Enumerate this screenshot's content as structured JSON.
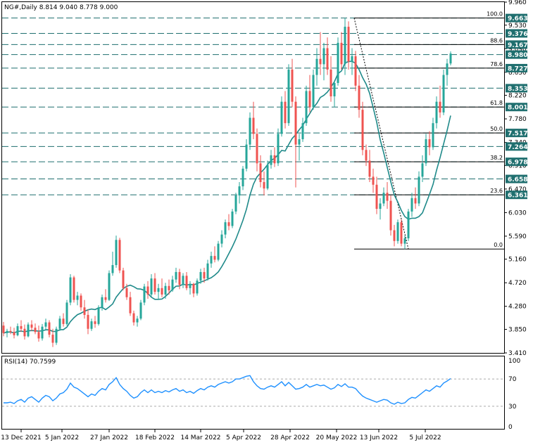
{
  "header": {
    "symbol_line": "NG#,Daily  8.814 9.040 8.778 9.000",
    "rsi_label": "RSI(14) 70.7599"
  },
  "colors": {
    "bull": "#26a69a",
    "bear": "#ef5350",
    "ma": "#1f8a8a",
    "rsi": "#1e90ff",
    "level_line": "#1f6f6f",
    "tag_bg": "#1f6f6f"
  },
  "chart_data": {
    "type": "candlestick",
    "title": "NG#,Daily",
    "ohlc_last": {
      "open": 8.814,
      "high": 9.04,
      "low": 8.778,
      "close": 9.0
    },
    "x_tick_labels": [
      "13 Dec 2021",
      "5 Jan 2022",
      "27 Jan 2022",
      "18 Feb 2022",
      "14 Mar 2022",
      "5 Apr 2022",
      "28 Apr 2022",
      "20 May 2022",
      "13 Jun 2022",
      "5 Jul 2022"
    ],
    "y_tick_labels": [
      "9.960",
      "9.530",
      "9.090",
      "8.650",
      "8.220",
      "7.780",
      "7.340",
      "6.910",
      "6.470",
      "6.030",
      "5.590",
      "5.160",
      "4.720",
      "4.280",
      "3.850",
      "3.410"
    ],
    "ylim": [
      3.41,
      9.96
    ],
    "horizontal_levels": [
      9.663,
      9.376,
      9.167,
      8.98,
      8.727,
      8.353,
      8.001,
      7.517,
      7.264,
      6.978,
      6.658,
      6.361
    ],
    "fibonacci": {
      "levels": [
        {
          "label": "100.0",
          "value": 9.663
        },
        {
          "label": "88.6",
          "value": 9.167
        },
        {
          "label": "78.6",
          "value": 8.727
        },
        {
          "label": "61.8",
          "value": 8.001
        },
        {
          "label": "50.0",
          "value": 7.517
        },
        {
          "label": "38.2",
          "value": 6.978
        },
        {
          "label": "23.6",
          "value": 6.361
        },
        {
          "label": "0.0",
          "value": 5.35
        }
      ]
    },
    "candles": [
      [
        3.92,
        3.99,
        3.72,
        3.78
      ],
      [
        3.78,
        3.86,
        3.7,
        3.82
      ],
      [
        3.82,
        3.9,
        3.76,
        3.8
      ],
      [
        3.8,
        3.88,
        3.68,
        3.74
      ],
      [
        3.74,
        3.96,
        3.72,
        3.91
      ],
      [
        3.91,
        4.02,
        3.8,
        3.86
      ],
      [
        3.86,
        3.94,
        3.66,
        3.72
      ],
      [
        3.72,
        3.98,
        3.7,
        3.94
      ],
      [
        3.94,
        4.02,
        3.82,
        3.88
      ],
      [
        3.88,
        3.96,
        3.76,
        3.8
      ],
      [
        3.8,
        3.92,
        3.62,
        3.68
      ],
      [
        3.68,
        3.95,
        3.64,
        3.9
      ],
      [
        3.9,
        4.05,
        3.85,
        3.98
      ],
      [
        3.98,
        4.02,
        3.7,
        3.75
      ],
      [
        3.75,
        3.86,
        3.52,
        3.6
      ],
      [
        3.6,
        3.9,
        3.56,
        3.86
      ],
      [
        3.86,
        4.1,
        3.82,
        4.05
      ],
      [
        4.05,
        4.15,
        3.9,
        3.95
      ],
      [
        3.95,
        4.4,
        3.92,
        4.35
      ],
      [
        4.35,
        4.88,
        4.3,
        4.82
      ],
      [
        4.82,
        4.85,
        4.35,
        4.4
      ],
      [
        4.4,
        4.55,
        4.3,
        4.48
      ],
      [
        4.48,
        4.52,
        4.2,
        4.26
      ],
      [
        4.26,
        4.4,
        4.05,
        4.12
      ],
      [
        4.12,
        4.22,
        3.76,
        3.86
      ],
      [
        3.86,
        4.05,
        3.82,
        4.0
      ],
      [
        4.0,
        4.1,
        3.88,
        3.95
      ],
      [
        3.95,
        4.3,
        3.92,
        4.26
      ],
      [
        4.26,
        4.5,
        4.2,
        4.45
      ],
      [
        4.45,
        4.6,
        4.35,
        4.4
      ],
      [
        4.4,
        4.95,
        4.38,
        4.9
      ],
      [
        4.9,
        5.3,
        4.85,
        5.05
      ],
      [
        5.05,
        5.6,
        5.0,
        5.52
      ],
      [
        5.52,
        5.56,
        4.9,
        4.95
      ],
      [
        4.95,
        5.0,
        4.58,
        4.62
      ],
      [
        4.62,
        4.7,
        4.4,
        4.45
      ],
      [
        4.45,
        4.55,
        4.1,
        4.15
      ],
      [
        4.15,
        4.2,
        3.92,
        3.98
      ],
      [
        3.98,
        4.1,
        3.9,
        4.05
      ],
      [
        4.05,
        4.4,
        4.02,
        4.35
      ],
      [
        4.35,
        4.7,
        4.3,
        4.65
      ],
      [
        4.65,
        4.75,
        4.42,
        4.5
      ],
      [
        4.5,
        4.88,
        4.45,
        4.8
      ],
      [
        4.8,
        4.9,
        4.5,
        4.55
      ],
      [
        4.55,
        4.7,
        4.4,
        4.62
      ],
      [
        4.62,
        4.8,
        4.45,
        4.5
      ],
      [
        4.5,
        4.72,
        4.42,
        4.66
      ],
      [
        4.66,
        4.78,
        4.5,
        4.58
      ],
      [
        4.58,
        4.85,
        4.55,
        4.78
      ],
      [
        4.78,
        5.0,
        4.72,
        4.92
      ],
      [
        4.92,
        4.98,
        4.6,
        4.68
      ],
      [
        4.68,
        4.9,
        4.62,
        4.85
      ],
      [
        4.85,
        4.92,
        4.58,
        4.62
      ],
      [
        4.62,
        4.75,
        4.5,
        4.7
      ],
      [
        4.7,
        4.72,
        4.45,
        4.52
      ],
      [
        4.52,
        4.8,
        4.48,
        4.76
      ],
      [
        4.76,
        4.98,
        4.7,
        4.92
      ],
      [
        4.92,
        5.0,
        4.72,
        4.8
      ],
      [
        4.8,
        5.15,
        4.76,
        5.08
      ],
      [
        5.08,
        5.3,
        5.0,
        5.22
      ],
      [
        5.22,
        5.4,
        5.1,
        5.15
      ],
      [
        5.15,
        5.5,
        5.12,
        5.45
      ],
      [
        5.45,
        5.7,
        5.38,
        5.62
      ],
      [
        5.62,
        5.9,
        5.55,
        5.85
      ],
      [
        5.85,
        6.0,
        5.7,
        5.78
      ],
      [
        5.78,
        6.1,
        5.74,
        6.05
      ],
      [
        6.05,
        6.4,
        6.0,
        6.35
      ],
      [
        6.35,
        6.6,
        6.2,
        6.52
      ],
      [
        6.52,
        6.9,
        6.45,
        6.85
      ],
      [
        6.85,
        7.4,
        6.8,
        7.3
      ],
      [
        7.3,
        7.9,
        7.2,
        7.8
      ],
      [
        7.8,
        8.1,
        7.4,
        7.5
      ],
      [
        7.5,
        7.6,
        6.8,
        6.95
      ],
      [
        6.95,
        7.1,
        6.5,
        6.6
      ],
      [
        6.6,
        6.8,
        6.35,
        6.48
      ],
      [
        6.48,
        7.0,
        6.45,
        6.92
      ],
      [
        6.92,
        7.2,
        6.85,
        7.1
      ],
      [
        7.1,
        7.25,
        6.88,
        6.95
      ],
      [
        6.95,
        7.6,
        6.9,
        7.5
      ],
      [
        7.5,
        8.2,
        7.45,
        8.1
      ],
      [
        8.1,
        8.3,
        7.6,
        7.7
      ],
      [
        7.7,
        8.8,
        7.65,
        8.7
      ],
      [
        8.7,
        8.9,
        8.0,
        8.1
      ],
      [
        8.1,
        8.2,
        6.5,
        7.3
      ],
      [
        7.3,
        7.5,
        7.0,
        7.4
      ],
      [
        7.4,
        7.8,
        7.35,
        7.7
      ],
      [
        7.7,
        8.4,
        7.65,
        8.3
      ],
      [
        8.3,
        8.6,
        7.9,
        8.0
      ],
      [
        8.0,
        8.7,
        7.95,
        8.6
      ],
      [
        8.6,
        9.1,
        8.4,
        8.9
      ],
      [
        8.9,
        9.4,
        8.6,
        8.8
      ],
      [
        8.8,
        9.2,
        8.5,
        9.1
      ],
      [
        9.1,
        9.3,
        8.6,
        8.7
      ],
      [
        8.7,
        8.95,
        8.1,
        8.2
      ],
      [
        8.2,
        8.5,
        8.0,
        8.45
      ],
      [
        8.45,
        9.3,
        8.4,
        9.2
      ],
      [
        9.2,
        9.4,
        8.7,
        8.8
      ],
      [
        8.8,
        9.66,
        8.6,
        9.5
      ],
      [
        9.5,
        9.6,
        8.7,
        8.85
      ],
      [
        8.85,
        9.1,
        8.6,
        8.95
      ],
      [
        8.95,
        9.05,
        8.3,
        8.4
      ],
      [
        8.4,
        8.6,
        7.8,
        7.95
      ],
      [
        7.95,
        8.1,
        7.1,
        7.2
      ],
      [
        7.2,
        7.3,
        6.9,
        7.0
      ],
      [
        7.0,
        7.2,
        6.6,
        6.7
      ],
      [
        6.7,
        6.85,
        6.4,
        6.55
      ],
      [
        6.55,
        6.7,
        6.0,
        6.1
      ],
      [
        6.1,
        6.3,
        5.9,
        6.2
      ],
      [
        6.2,
        6.5,
        6.15,
        6.4
      ],
      [
        6.4,
        6.6,
        6.1,
        6.25
      ],
      [
        6.25,
        6.35,
        5.6,
        5.7
      ],
      [
        5.7,
        5.8,
        5.4,
        5.5
      ],
      [
        5.5,
        5.9,
        5.45,
        5.85
      ],
      [
        5.85,
        5.9,
        5.4,
        5.45
      ],
      [
        5.45,
        5.6,
        5.35,
        5.55
      ],
      [
        5.55,
        6.1,
        5.5,
        6.05
      ],
      [
        6.05,
        6.4,
        5.95,
        6.3
      ],
      [
        6.3,
        6.5,
        6.1,
        6.2
      ],
      [
        6.2,
        6.8,
        6.15,
        6.7
      ],
      [
        6.7,
        7.1,
        6.6,
        6.95
      ],
      [
        6.95,
        7.5,
        6.9,
        7.4
      ],
      [
        7.4,
        7.55,
        7.1,
        7.25
      ],
      [
        7.25,
        7.8,
        7.2,
        7.7
      ],
      [
        7.7,
        8.2,
        7.6,
        8.1
      ],
      [
        8.1,
        8.4,
        7.8,
        7.9
      ],
      [
        7.9,
        8.7,
        7.85,
        8.6
      ],
      [
        8.6,
        8.9,
        8.4,
        8.814
      ],
      [
        8.814,
        9.04,
        8.778,
        9.0
      ]
    ],
    "rsi": {
      "label": "RSI(14)",
      "value": 70.7599,
      "ylim": [
        0,
        100
      ],
      "tick_labels": [
        "100",
        "70",
        "30",
        "0"
      ],
      "levels": [
        70,
        30
      ],
      "values": [
        35,
        35,
        36,
        34,
        38,
        40,
        36,
        42,
        44,
        40,
        36,
        42,
        46,
        44,
        38,
        42,
        48,
        50,
        55,
        64,
        58,
        56,
        52,
        48,
        44,
        48,
        46,
        52,
        56,
        54,
        62,
        66,
        72,
        62,
        56,
        52,
        46,
        42,
        44,
        50,
        54,
        50,
        54,
        50,
        52,
        50,
        53,
        51,
        54,
        56,
        52,
        54,
        50,
        52,
        49,
        53,
        56,
        54,
        58,
        60,
        58,
        62,
        64,
        66,
        64,
        66,
        70,
        70,
        72,
        74,
        75,
        66,
        60,
        56,
        55,
        58,
        60,
        58,
        62,
        66,
        60,
        65,
        60,
        55,
        56,
        58,
        62,
        58,
        60,
        62,
        60,
        61,
        58,
        55,
        57,
        62,
        59,
        63,
        58,
        58,
        56,
        50,
        45,
        42,
        40,
        38,
        36,
        38,
        40,
        39,
        35,
        33,
        36,
        34,
        35,
        40,
        43,
        42,
        46,
        50,
        54,
        52,
        56,
        60,
        58,
        64,
        67,
        70.76
      ]
    }
  }
}
